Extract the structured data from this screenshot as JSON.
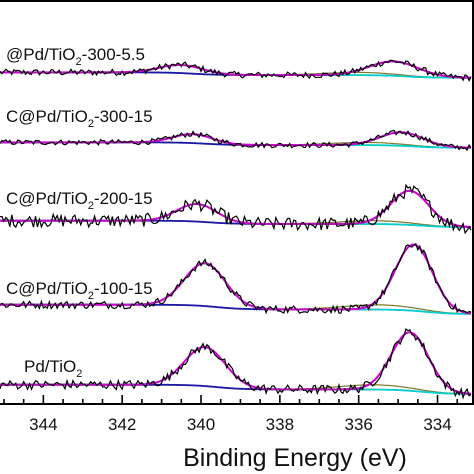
{
  "chart_data": {
    "type": "line",
    "xlabel": "Binding Energy (eV)",
    "x_ticks": [
      344,
      342,
      340,
      338,
      336,
      334
    ],
    "xlim": [
      345.1,
      333.1
    ],
    "x_reversed": true,
    "series_labels": [
      {
        "prefix": "@Pd/TiO",
        "sub": "2",
        "suffix": "-300-5.5"
      },
      {
        "prefix": "C@Pd/TiO",
        "sub": "2",
        "suffix": "-300-15"
      },
      {
        "prefix": "C@Pd/TiO",
        "sub": "2",
        "suffix": "-200-15"
      },
      {
        "prefix": "C@Pd/TiO",
        "sub": "2",
        "suffix": "-100-15"
      },
      {
        "prefix": "Pd/TiO",
        "sub": "2",
        "suffix": ""
      }
    ],
    "series": [
      {
        "peaks": [
          {
            "center": 340.5,
            "height": 0.18,
            "width": 0.55
          },
          {
            "center": 335.1,
            "height": 0.32,
            "width": 0.62
          }
        ],
        "noise": 0.07
      },
      {
        "peaks": [
          {
            "center": 340.2,
            "height": 0.2,
            "width": 0.5
          },
          {
            "center": 334.9,
            "height": 0.3,
            "width": 0.55
          }
        ],
        "noise": 0.06
      },
      {
        "peaks": [
          {
            "center": 340.1,
            "height": 0.32,
            "width": 0.5
          },
          {
            "center": 334.7,
            "height": 0.62,
            "width": 0.48
          }
        ],
        "noise": 0.12
      },
      {
        "peaks": [
          {
            "center": 339.9,
            "height": 0.55,
            "width": 0.52
          },
          {
            "center": 334.6,
            "height": 0.85,
            "width": 0.47
          }
        ],
        "noise": 0.05
      },
      {
        "peaks": [
          {
            "center": 339.9,
            "height": 0.5,
            "width": 0.52
          },
          {
            "center": 334.7,
            "height": 0.75,
            "width": 0.47
          }
        ],
        "noise": 0.06
      }
    ],
    "colors": {
      "raw": "#000000",
      "envelope": "#d400d4",
      "peak_3d3": "#00d0d0",
      "peak_3d5": "#1a1aa8",
      "background": "#d02020",
      "minor": "#7a7a2a"
    }
  }
}
